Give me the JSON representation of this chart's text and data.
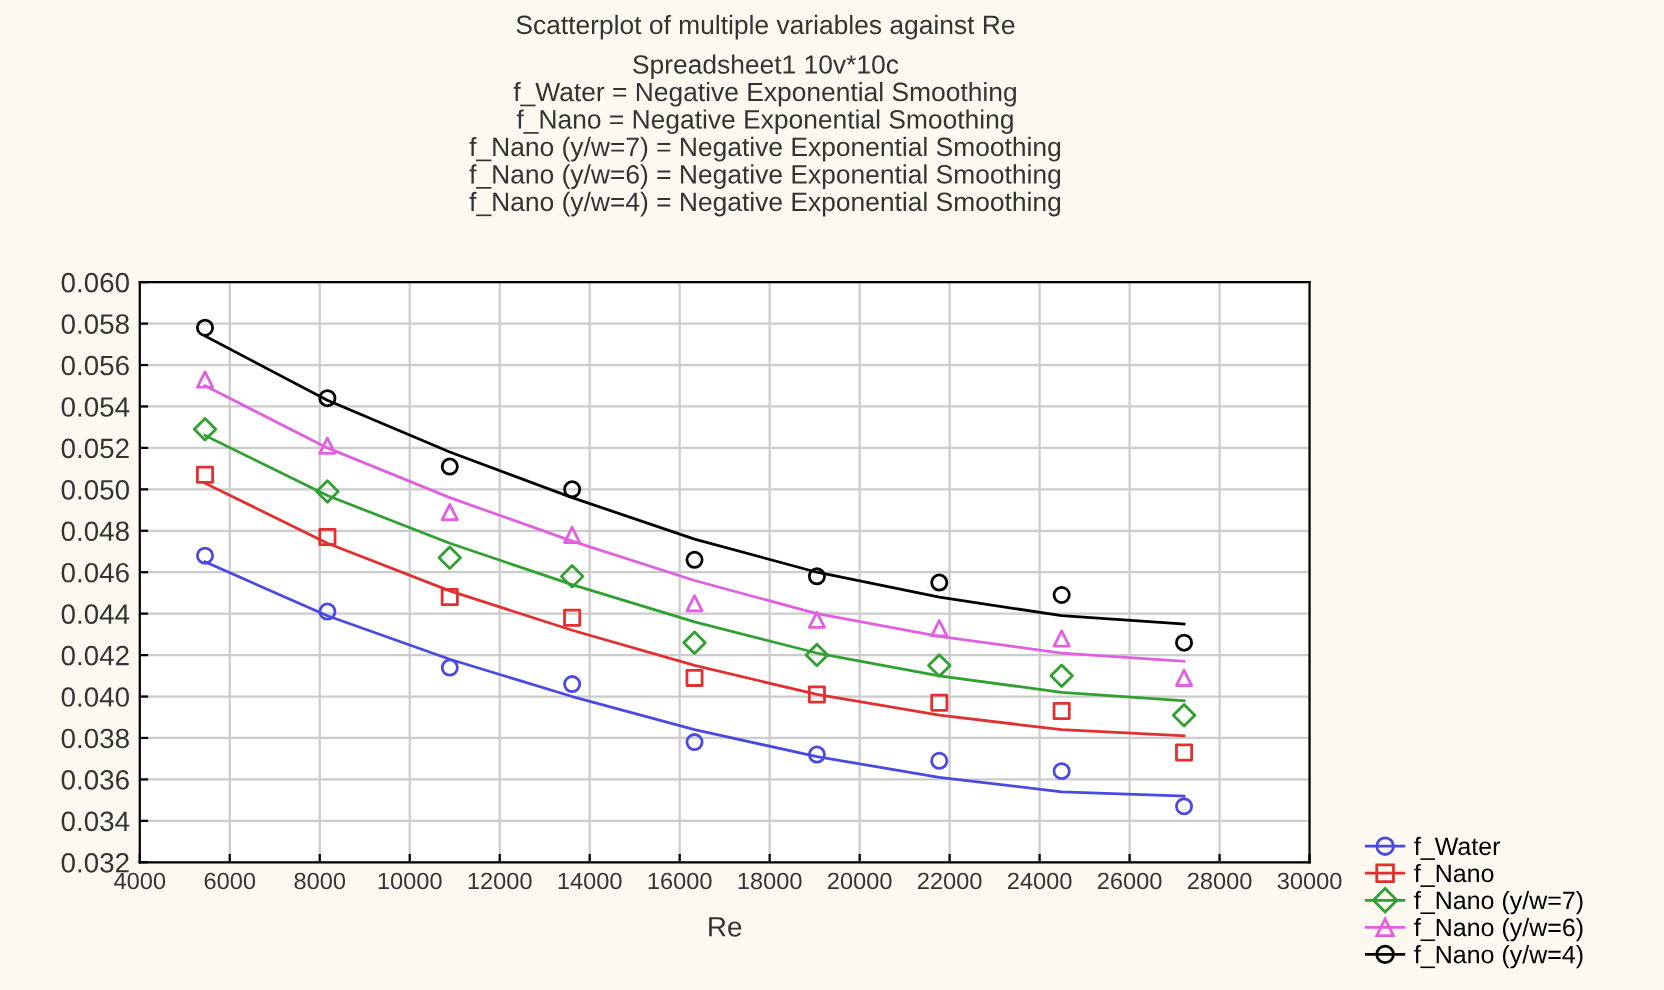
{
  "chart_data": {
    "type": "scatter",
    "title": "Scatterplot of multiple variables against Re",
    "subtitle": "Spreadsheet1 10v*10c\nf_Water = Negative Exponential Smoothing\nf_Nano = Negative Exponential Smoothing\nf_Nano (y/w=7) = Negative Exponential Smoothing\nf_Nano (y/w=6) = Negative Exponential Smoothing\nf_Nano (y/w=4) = Negative Exponential Smoothing",
    "xlabel": "Re",
    "x": [
      5450,
      8170,
      10890,
      13610,
      16330,
      19050,
      21770,
      24490,
      27210
    ],
    "series": [
      {
        "name": "f_Water",
        "color": "#4a4ae0",
        "marker": "circle",
        "values": [
          0.0468,
          0.0441,
          0.0414,
          0.0406,
          0.0378,
          0.0372,
          0.0369,
          0.0364,
          0.0347
        ]
      },
      {
        "name": "f_Nano",
        "color": "#e03030",
        "marker": "square",
        "values": [
          0.0507,
          0.0477,
          0.0448,
          0.0438,
          0.0409,
          0.0401,
          0.0397,
          0.0393,
          0.0373
        ]
      },
      {
        "name": "f_Nano (y/w=7)",
        "color": "#30a030",
        "marker": "diamond",
        "values": [
          0.0529,
          0.0499,
          0.0467,
          0.0458,
          0.0426,
          0.042,
          0.0415,
          0.041,
          0.0391
        ]
      },
      {
        "name": "f_Nano (y/w=6)",
        "color": "#e060e0",
        "marker": "triangle",
        "values": [
          0.0553,
          0.0521,
          0.0489,
          0.0478,
          0.0445,
          0.0437,
          0.0433,
          0.0428,
          0.0409
        ]
      },
      {
        "name": "f_Nano (y/w=4)",
        "color": "#000000",
        "marker": "circle",
        "values": [
          0.0578,
          0.0544,
          0.0511,
          0.05,
          0.0466,
          0.0458,
          0.0455,
          0.0449,
          0.0426
        ]
      },
      {
        "type": "line",
        "color": "#4a4ae0",
        "values": [
          0.0465,
          0.0439,
          0.0418,
          0.04,
          0.0384,
          0.0371,
          0.0361,
          0.0354,
          0.0352
        ]
      },
      {
        "type": "line",
        "color": "#e03030",
        "values": [
          0.0503,
          0.0474,
          0.0451,
          0.0432,
          0.0415,
          0.0401,
          0.0391,
          0.0384,
          0.0381
        ]
      },
      {
        "type": "line",
        "color": "#30a030",
        "values": [
          0.0526,
          0.0497,
          0.0474,
          0.0454,
          0.0436,
          0.0421,
          0.041,
          0.0402,
          0.0398
        ]
      },
      {
        "type": "line",
        "color": "#e060e0",
        "values": [
          0.055,
          0.052,
          0.0496,
          0.0475,
          0.0456,
          0.044,
          0.0429,
          0.0421,
          0.0417
        ]
      },
      {
        "type": "line",
        "color": "#000000",
        "values": [
          0.0574,
          0.0543,
          0.0518,
          0.0496,
          0.0476,
          0.046,
          0.0448,
          0.0439,
          0.0435
        ]
      }
    ],
    "xlim": [
      4000,
      30000
    ],
    "xticks": [
      4000,
      6000,
      8000,
      10000,
      12000,
      14000,
      16000,
      18000,
      20000,
      22000,
      24000,
      26000,
      28000,
      30000
    ],
    "ylim": [
      0.032,
      0.06
    ],
    "yticks": [
      {
        "value": 0.032,
        "label": "0.032"
      },
      {
        "value": 0.034,
        "label": "0.034"
      },
      {
        "value": 0.036,
        "label": "0.036"
      },
      {
        "value": 0.038,
        "label": "0.038"
      },
      {
        "value": 0.04,
        "label": "0.040"
      },
      {
        "value": 0.042,
        "label": "0.042"
      },
      {
        "value": 0.044,
        "label": "0.044"
      },
      {
        "value": 0.046,
        "label": "0.046"
      },
      {
        "value": 0.048,
        "label": "0.048"
      },
      {
        "value": 0.05,
        "label": "0.050"
      },
      {
        "value": 0.052,
        "label": "0.052"
      },
      {
        "value": 0.054,
        "label": "0.054"
      },
      {
        "value": 0.056,
        "label": "0.056"
      },
      {
        "value": 0.058,
        "label": "0.058"
      },
      {
        "value": 0.06,
        "label": "0.060"
      }
    ],
    "grid": true,
    "legend": "bottom right"
  }
}
